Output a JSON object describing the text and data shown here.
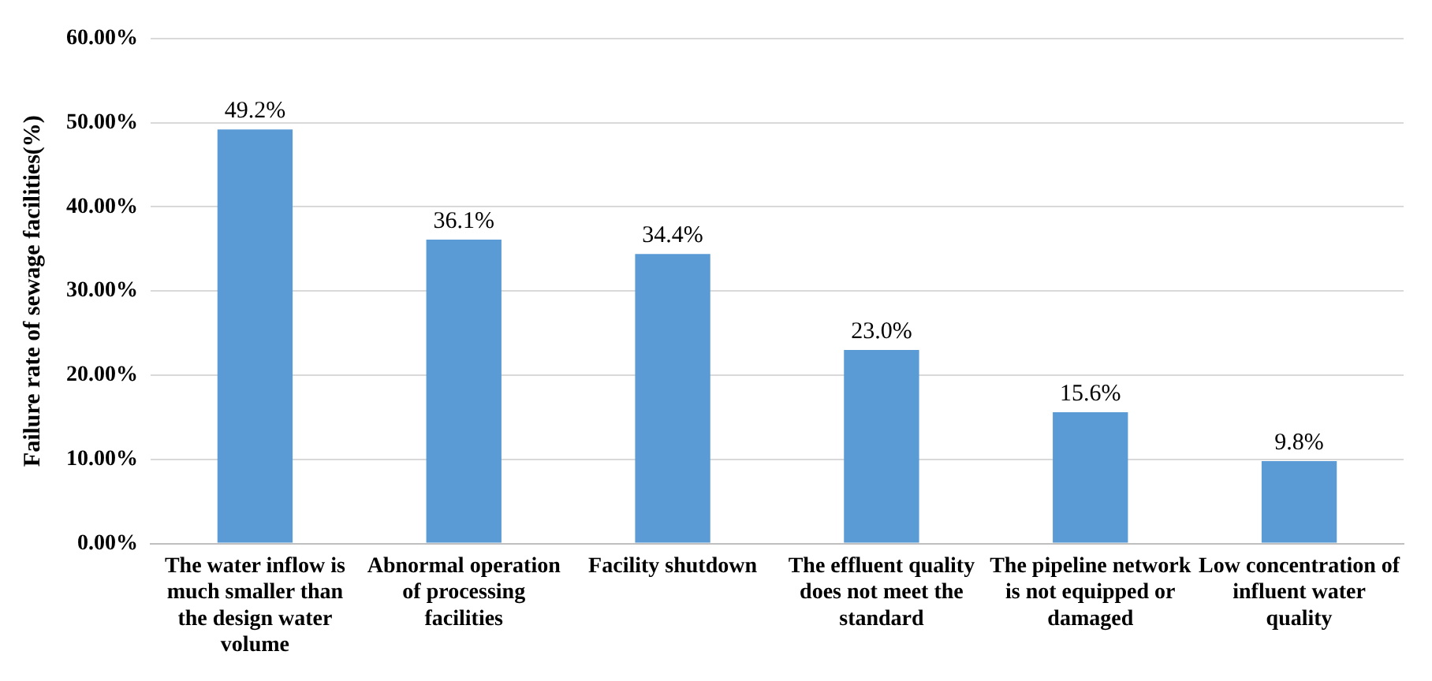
{
  "chart_data": {
    "type": "bar",
    "ylabel": "Failure rate of sewage facilities(%)",
    "categories": [
      "The water inflow is much smaller than the design water volume",
      "Abnormal operation of processing facilities",
      "Facility shutdown",
      "The effluent quality does not meet the standard",
      "The pipeline network is not equipped or damaged",
      "Low concentration of influent water quality"
    ],
    "values": [
      49.2,
      36.1,
      34.4,
      23.0,
      15.6,
      9.8
    ],
    "value_labels": [
      "49.2%",
      "36.1%",
      "34.4%",
      "23.0%",
      "15.6%",
      "9.8%"
    ],
    "color": "#5b9bd5",
    "ylim": [
      0,
      60
    ],
    "yticks": [
      {
        "value": 0,
        "label": "0.00%"
      },
      {
        "value": 10,
        "label": "10.00%"
      },
      {
        "value": 20,
        "label": "20.00%"
      },
      {
        "value": 30,
        "label": "30.00%"
      },
      {
        "value": 40,
        "label": "40.00%"
      },
      {
        "value": 50,
        "label": "50.00%"
      },
      {
        "value": 60,
        "label": "60.00%"
      }
    ],
    "grid": "y",
    "legend": false
  }
}
